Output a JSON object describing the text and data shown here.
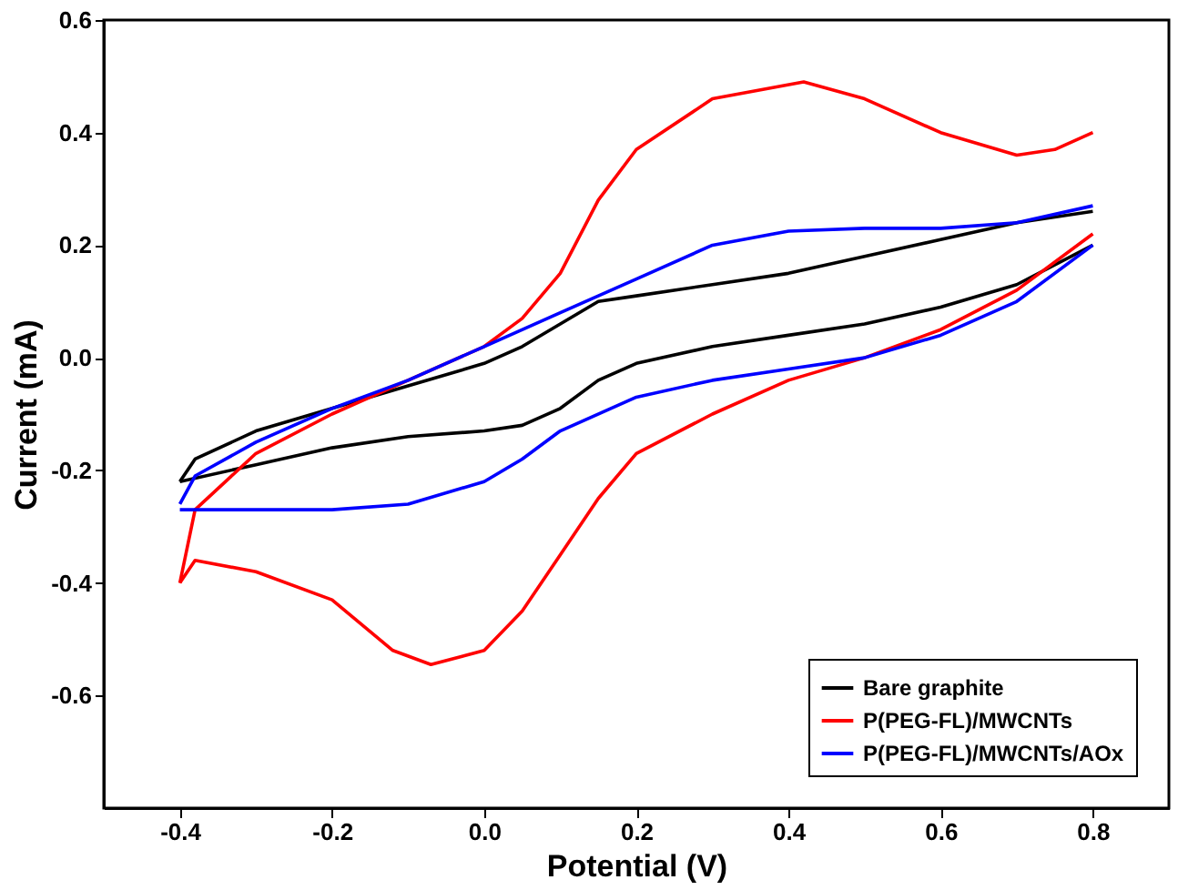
{
  "chart_data": {
    "type": "line",
    "xlabel": "Potential (V)",
    "ylabel": "Current (mA)",
    "xlim": [
      -0.5,
      0.9
    ],
    "ylim": [
      -0.8,
      0.6
    ],
    "xticks": [
      -0.4,
      -0.2,
      {
        "value": 0,
        "label": "0.0"
      },
      0.2,
      0.4,
      0.6,
      0.8
    ],
    "yticks": [
      -0.6,
      -0.4,
      -0.2,
      {
        "value": 0,
        "label": "0.0"
      },
      0.2,
      0.4,
      0.6
    ],
    "grid": false,
    "legend": "bottom right",
    "marker": "none",
    "line_style": "solid",
    "series": [
      {
        "name": "Bare graphite",
        "color": "#000000",
        "x": [
          -0.4,
          -0.3,
          -0.2,
          -0.1,
          0,
          0.05,
          0.1,
          0.15,
          0.2,
          0.3,
          0.4,
          0.5,
          0.6,
          0.7,
          0.8
        ],
        "values": [
          -0.22,
          -0.19,
          -0.16,
          -0.14,
          -0.13,
          -0.12,
          -0.09,
          -0.04,
          -0.01,
          0.02,
          0.04,
          0.06,
          0.09,
          0.13,
          0.2
        ]
      },
      {
        "color": "#000000",
        "x": [
          0.8,
          0.7,
          0.6,
          0.5,
          0.4,
          0.3,
          0.2,
          0.15,
          0.1,
          0.05,
          0,
          -0.1,
          -0.2,
          -0.3,
          -0.38,
          -0.4
        ],
        "values": [
          0.26,
          0.24,
          0.21,
          0.18,
          0.15,
          0.13,
          0.11,
          0.1,
          0.06,
          0.02,
          -0.01,
          -0.05,
          -0.09,
          -0.13,
          -0.18,
          -0.22
        ]
      },
      {
        "name": "P(PEG-FL)/MWCNTs",
        "color": "#ff0000",
        "x": [
          -0.4,
          -0.38,
          -0.3,
          -0.2,
          -0.12,
          -0.07,
          0,
          0.05,
          0.1,
          0.15,
          0.2,
          0.3,
          0.4,
          0.5,
          0.6,
          0.7,
          0.8
        ],
        "values": [
          -0.4,
          -0.36,
          -0.38,
          -0.43,
          -0.52,
          -0.545,
          -0.52,
          -0.45,
          -0.35,
          -0.25,
          -0.17,
          -0.1,
          -0.04,
          0.0,
          0.05,
          0.12,
          0.22
        ]
      },
      {
        "color": "#ff0000",
        "x": [
          0.8,
          0.75,
          0.7,
          0.6,
          0.5,
          0.42,
          0.3,
          0.2,
          0.15,
          0.1,
          0.05,
          0,
          -0.1,
          -0.2,
          -0.3,
          -0.38,
          -0.4
        ],
        "values": [
          0.4,
          0.37,
          0.36,
          0.4,
          0.46,
          0.49,
          0.46,
          0.37,
          0.28,
          0.15,
          0.07,
          0.02,
          -0.04,
          -0.1,
          -0.17,
          -0.27,
          -0.4
        ]
      },
      {
        "name": "P(PEG-FL)/MWCNTs/AOx",
        "color": "#0000ff",
        "x": [
          -0.4,
          -0.38,
          -0.3,
          -0.2,
          -0.1,
          0,
          0.05,
          0.1,
          0.2,
          0.3,
          0.4,
          0.5,
          0.6,
          0.7,
          0.8
        ],
        "values": [
          -0.27,
          -0.27,
          -0.27,
          -0.27,
          -0.26,
          -0.22,
          -0.18,
          -0.13,
          -0.07,
          -0.04,
          -0.02,
          0.0,
          0.04,
          0.1,
          0.2
        ]
      },
      {
        "color": "#0000ff",
        "x": [
          0.8,
          0.7,
          0.6,
          0.5,
          0.4,
          0.3,
          0.2,
          0.1,
          0,
          -0.1,
          -0.2,
          -0.3,
          -0.38,
          -0.4
        ],
        "values": [
          0.27,
          0.24,
          0.23,
          0.23,
          0.225,
          0.2,
          0.14,
          0.08,
          0.02,
          -0.04,
          -0.09,
          -0.15,
          -0.21,
          -0.26
        ]
      }
    ]
  }
}
